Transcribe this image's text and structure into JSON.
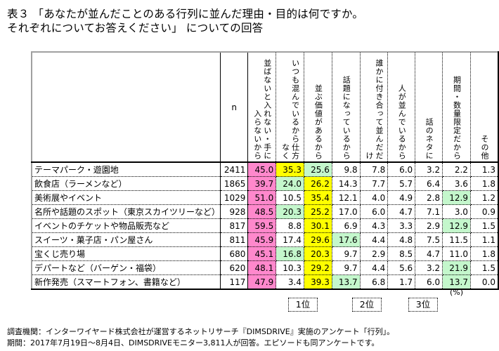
{
  "title": {
    "line1": "表３ 「あなたが並んだことのある行列に並んだ理由・目的は何ですか。",
    "line2": "それぞれについてお答えください」 についての回答"
  },
  "table": {
    "n_header": "n",
    "columns": [
      "並ばないと入れない・手に入らないから",
      "いつも混んでいるから仕方なく",
      "並ぶ価値があるから",
      "話題になっているから",
      "誰かに付き合って並んだだけ",
      "人が並んでいるから",
      "話のネタに",
      "期間・数量限定だから",
      "その他"
    ],
    "column_lines": [
      [
        "並ばないと入れない・",
        "手に入らないから"
      ],
      [
        "いつも混んでいるから",
        "仕方なく"
      ],
      [
        "並ぶ価値があるから"
      ],
      [
        "話題になっているから"
      ],
      [
        "誰かに付き合って",
        "並んだだけ"
      ],
      [
        "人が並んでいるから"
      ],
      [
        "話のネタに"
      ],
      [
        "期間・数量限定だから"
      ],
      [
        "その他"
      ]
    ],
    "rows": [
      {
        "label": "テーマパーク・遊園地",
        "n": "2411",
        "values": [
          "45.0",
          "35.3",
          "25.6",
          "9.8",
          "7.8",
          "6.0",
          "3.2",
          "2.2",
          "1.3"
        ],
        "rank": [
          1,
          2,
          3,
          0,
          0,
          0,
          0,
          0,
          0
        ]
      },
      {
        "label": "飲食店（ラーメンなど）",
        "n": "1865",
        "values": [
          "39.7",
          "24.0",
          "26.2",
          "14.3",
          "7.7",
          "5.7",
          "6.4",
          "3.6",
          "1.8"
        ],
        "rank": [
          1,
          3,
          2,
          0,
          0,
          0,
          0,
          0,
          0
        ]
      },
      {
        "label": "美術展やイベント",
        "n": "1029",
        "values": [
          "51.0",
          "10.5",
          "35.4",
          "12.1",
          "4.0",
          "4.9",
          "2.8",
          "12.9",
          "1.2"
        ],
        "rank": [
          1,
          0,
          2,
          0,
          0,
          0,
          0,
          3,
          0
        ]
      },
      {
        "label": "名所や話題のスポット（東京スカイツリーなど）",
        "n": "928",
        "values": [
          "48.5",
          "20.3",
          "25.2",
          "17.0",
          "6.0",
          "4.7",
          "7.1",
          "3.0",
          "0.9"
        ],
        "rank": [
          1,
          3,
          2,
          0,
          0,
          0,
          0,
          0,
          0
        ]
      },
      {
        "label": "イベントのチケットや物品販売など",
        "n": "817",
        "values": [
          "59.5",
          "8.8",
          "30.1",
          "6.9",
          "4.3",
          "3.3",
          "2.9",
          "12.9",
          "1.5"
        ],
        "rank": [
          1,
          0,
          2,
          0,
          0,
          0,
          0,
          3,
          0
        ]
      },
      {
        "label": "スイーツ・菓子店・パン屋さん",
        "n": "811",
        "values": [
          "45.9",
          "17.4",
          "29.6",
          "17.6",
          "4.4",
          "4.8",
          "7.5",
          "11.5",
          "1.1"
        ],
        "rank": [
          1,
          0,
          2,
          3,
          0,
          0,
          0,
          0,
          0
        ]
      },
      {
        "label": "宝くじ売り場",
        "n": "680",
        "values": [
          "45.1",
          "16.8",
          "20.3",
          "9.7",
          "2.9",
          "8.5",
          "4.7",
          "11.0",
          "1.8"
        ],
        "rank": [
          1,
          3,
          2,
          0,
          0,
          0,
          0,
          0,
          0
        ]
      },
      {
        "label": "デパートなど（バーゲン・福袋）",
        "n": "620",
        "values": [
          "48.1",
          "10.3",
          "29.2",
          "9.7",
          "4.4",
          "5.6",
          "3.2",
          "21.9",
          "1.5"
        ],
        "rank": [
          1,
          0,
          2,
          0,
          0,
          0,
          0,
          3,
          0
        ]
      },
      {
        "label": "新作発売（スマートフォン、書籍など）",
        "n": "117",
        "values": [
          "47.9",
          "3.4",
          "39.3",
          "13.7",
          "6.8",
          "1.7",
          "6.0",
          "13.7",
          "0.0"
        ],
        "rank": [
          1,
          0,
          2,
          3,
          0,
          0,
          0,
          3,
          0
        ]
      }
    ],
    "unit": "(%)"
  },
  "legend": {
    "first": {
      "label": "1位",
      "color": "#ff88cc"
    },
    "second": {
      "label": "2位",
      "color": "#ffff00"
    },
    "third": {
      "label": "3位",
      "color": "#c4f7cc"
    }
  },
  "footer": {
    "line1": "調査機関：インターワイヤード株式会社が運営するネットリサーチ『DIMSDRIVE』実施のアンケート「行列」。",
    "line2": "期間：2017年7月19日～8月4日、DIMSDRIVEモニター3,811人が回答。エピソードも同アンケートです。"
  }
}
